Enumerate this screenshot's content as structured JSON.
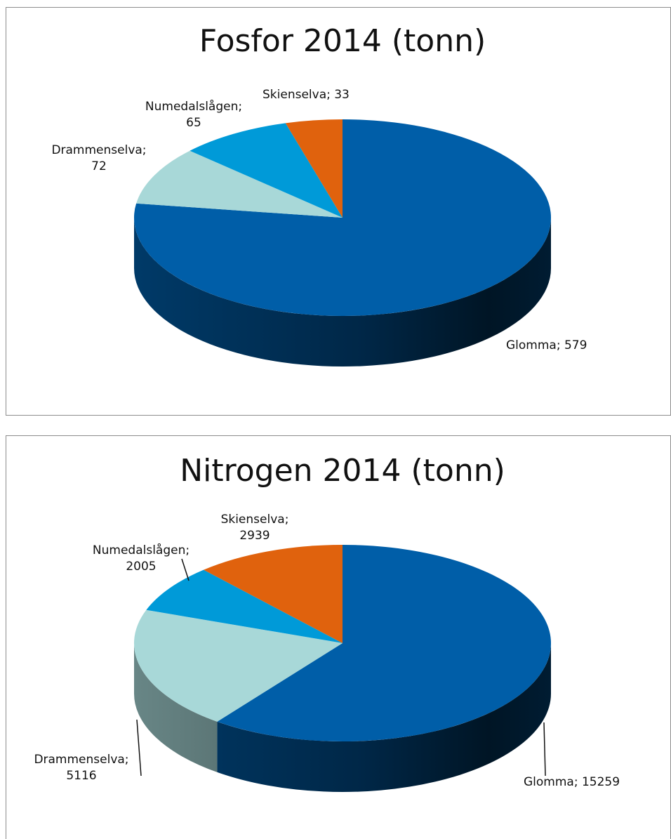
{
  "chart_data": [
    {
      "type": "pie",
      "title": "Fosfor 2014 (tonn)",
      "categories": [
        "Glomma",
        "Drammenselva",
        "Numedalslågen",
        "Skienselva"
      ],
      "values": [
        579,
        72,
        65,
        33
      ],
      "value_labels": [
        "Glomma; 579",
        "Drammenselva; 72",
        "Numedalslågen; 65",
        "Skienselva; 33"
      ],
      "colors": [
        "#005ea8",
        "#a8d8d8",
        "#009ad8",
        "#e0620d"
      ]
    },
    {
      "type": "pie",
      "title": "Nitrogen 2014 (tonn)",
      "categories": [
        "Glomma",
        "Drammenselva",
        "Numedalslågen",
        "Skienselva"
      ],
      "values": [
        15259,
        5116,
        2005,
        2939
      ],
      "value_labels": [
        "Glomma; 15259",
        "Drammenselva; 5116",
        "Numedalslågen; 2005",
        "Skienselva; 2939"
      ],
      "colors": [
        "#005ea8",
        "#a8d8d8",
        "#009ad8",
        "#e0620d"
      ]
    }
  ]
}
